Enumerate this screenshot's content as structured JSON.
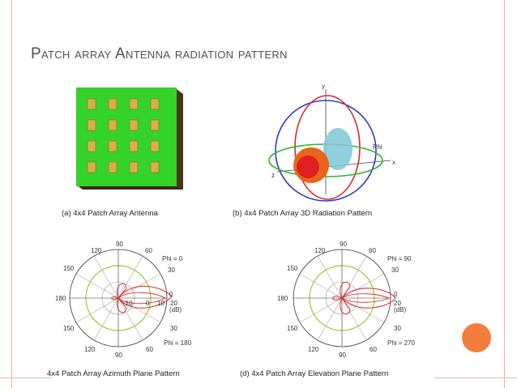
{
  "slide": {
    "title": "Patch array Antenna radiation pattern",
    "accent_color": "#f47c3c",
    "frame_color": "#f2b49a"
  },
  "figure": {
    "captions": {
      "a": "(a) 4x4 Patch Array Antenna",
      "b": "(b) 4x4 Patch Array 3D Radiation Pattern",
      "c": "4x4 Patch Array Azimuth Plane Pattern",
      "d": "(d) 4x4 Patch Array Elevation Plane Pattern"
    },
    "axes_3d": {
      "x": "x",
      "y": "y",
      "z": "z",
      "phi": "Phi"
    },
    "azimuth": {
      "phi_top": "Phi = 0",
      "phi_bottom": "Phi = 180",
      "angles": {
        "a90": "90",
        "a120": "120",
        "a60": "60",
        "a150": "150",
        "a30": "30",
        "a180": "180",
        "a0": "0",
        "b150": "150",
        "b30": "30",
        "b120": "120",
        "b60": "60",
        "b90": "90"
      },
      "radial": {
        "r1": "-10",
        "r2": "0",
        "r3": "10",
        "r4": "20",
        "unit": "(dB)"
      }
    },
    "elevation": {
      "phi_top": "Phi = 90",
      "phi_bottom": "Phi = 270",
      "angles": {
        "a90": "90",
        "a120": "120",
        "a60": "60",
        "a150": "150",
        "a30": "30",
        "a180": "180",
        "a0": "0",
        "b150": "150",
        "b30": "30",
        "b120": "120",
        "b60": "60",
        "b90": "90"
      },
      "radial": {
        "r4": "20",
        "unit": "(dB)"
      }
    }
  }
}
